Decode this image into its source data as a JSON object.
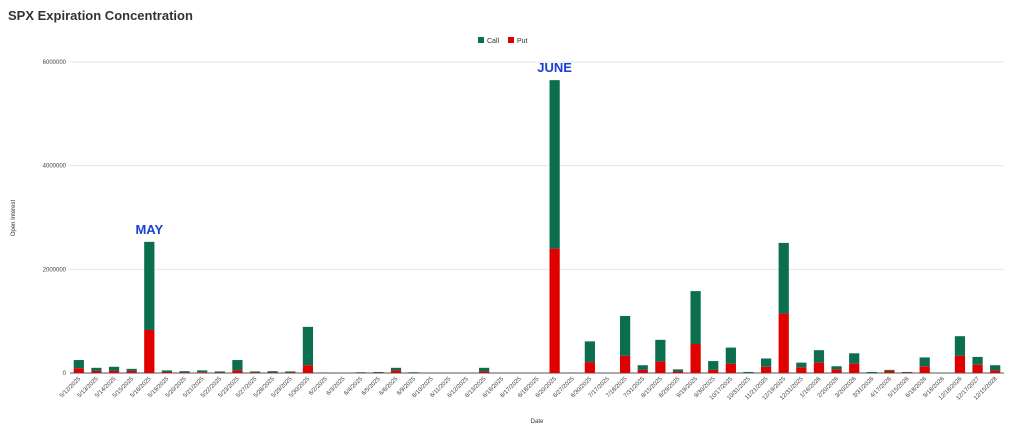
{
  "chart_data": {
    "type": "bar",
    "stacked": true,
    "title": "SPX Expiration Concentration",
    "xlabel": "Date",
    "ylabel": "Open Interest",
    "ylim": [
      0,
      6000000
    ],
    "yticks": [
      "0",
      "2000000",
      "4000000",
      "6000000"
    ],
    "grid": true,
    "legend_position": "top-center",
    "colors": {
      "Call": "#0b6e4f",
      "Put": "#e00000"
    },
    "categories": [
      "5/12/2025",
      "5/13/2025",
      "5/14/2025",
      "5/15/2025",
      "5/16/2025",
      "5/19/2025",
      "5/20/2025",
      "5/21/2025",
      "5/22/2025",
      "5/23/2025",
      "5/27/2025",
      "5/28/2025",
      "5/29/2025",
      "5/30/2025",
      "6/2/2025",
      "6/3/2025",
      "6/4/2025",
      "6/5/2025",
      "6/6/2025",
      "6/9/2025",
      "6/10/2025",
      "6/11/2025",
      "6/12/2025",
      "6/13/2025",
      "6/16/2025",
      "6/17/2025",
      "6/18/2025",
      "6/20/2025",
      "6/27/2025",
      "6/30/2025",
      "7/17/2025",
      "7/18/2025",
      "7/31/2025",
      "8/15/2025",
      "8/29/2025",
      "9/19/2025",
      "9/30/2025",
      "10/17/2025",
      "10/31/2025",
      "11/21/2025",
      "12/19/2025",
      "12/31/2025",
      "1/16/2026",
      "2/20/2026",
      "3/20/2026",
      "3/31/2026",
      "4/17/2026",
      "5/15/2026",
      "6/18/2026",
      "9/18/2026",
      "12/18/2026",
      "12/17/2027",
      "12/15/2028"
    ],
    "series": [
      {
        "name": "Put",
        "values": [
          90000,
          40000,
          40000,
          40000,
          830000,
          20000,
          10000,
          15000,
          10000,
          50000,
          10000,
          10000,
          10000,
          150000,
          5000,
          0,
          5000,
          5000,
          50000,
          5000,
          0,
          0,
          0,
          30000,
          0,
          0,
          0,
          2400000,
          0,
          210000,
          0,
          330000,
          60000,
          220000,
          30000,
          560000,
          60000,
          180000,
          0,
          120000,
          1150000,
          110000,
          200000,
          70000,
          180000,
          0,
          40000,
          10000,
          130000,
          0,
          330000,
          160000,
          50000
        ]
      },
      {
        "name": "Call",
        "values": [
          160000,
          60000,
          80000,
          40000,
          1700000,
          30000,
          25000,
          35000,
          20000,
          200000,
          20000,
          25000,
          20000,
          740000,
          5000,
          0,
          10000,
          15000,
          50000,
          10000,
          0,
          0,
          0,
          70000,
          0,
          0,
          0,
          3250000,
          10000,
          400000,
          0,
          770000,
          90000,
          420000,
          40000,
          1020000,
          170000,
          310000,
          20000,
          160000,
          1360000,
          90000,
          240000,
          60000,
          200000,
          20000,
          20000,
          10000,
          170000,
          0,
          380000,
          150000,
          100000
        ]
      }
    ],
    "annotations": [
      {
        "text": "MAY",
        "category": "5/16/2025"
      },
      {
        "text": "JUNE",
        "category": "6/20/2025"
      }
    ]
  }
}
